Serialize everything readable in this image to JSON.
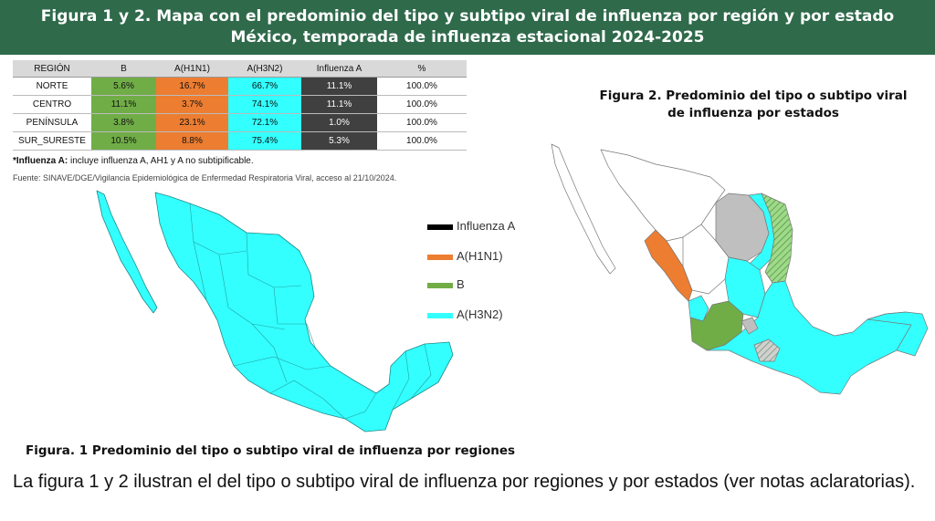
{
  "header": {
    "line1": "Figura 1 y 2. Mapa con el predominio del tipo y subtipo viral de influenza por región y por estado",
    "line2": "México, temporada de influenza estacional 2024-2025"
  },
  "table": {
    "columns": [
      "REGIÓN",
      "B",
      "A(H1N1)",
      "A(H3N2)",
      "Influenza A",
      "%"
    ],
    "rows": [
      [
        "NORTE",
        "5.6%",
        "16.7%",
        "66.7%",
        "11.1%",
        "100.0%"
      ],
      [
        "CENTRO",
        "11.1%",
        "3.7%",
        "74.1%",
        "11.1%",
        "100.0%"
      ],
      [
        "PENÍNSULA",
        "3.8%",
        "23.1%",
        "72.1%",
        "1.0%",
        "100.0%"
      ],
      [
        "SUR_SURESTE",
        "10.5%",
        "8.8%",
        "75.4%",
        "5.3%",
        "100.0%"
      ]
    ]
  },
  "note": {
    "label": "*Influenza A:",
    "text": " incluye influenza A, AH1 y A no subtipificable."
  },
  "source": "Fuente: SINAVE/DGE/Vigilancia Epidemiológica de Enfermedad Respiratoria Viral, acceso al 21/10/2024.",
  "figure2_title": {
    "line1": "Figura 2. Predominio del tipo o subtipo viral",
    "line2": "de influenza por estados"
  },
  "figure1_title": "Figura. 1 Predominio del tipo o subtipo viral de influenza por regiones",
  "legend": [
    {
      "label": "Influenza A",
      "color": "#000000"
    },
    {
      "label": "A(H1N1)",
      "color": "#ed7d31"
    },
    {
      "label": "B",
      "color": "#70ad47"
    },
    {
      "label": "A(H3N2)",
      "color": "#33ffff"
    }
  ],
  "colors": {
    "header_bg": "#2f6a4b",
    "h3n2": "#33ffff",
    "h1n1": "#ed7d31",
    "b": "#70ad47",
    "influenza_a": "#404040",
    "no_data": "#ffffff",
    "gray_state": "#bfbfbf"
  },
  "body_text": "La figura 1 y 2 ilustran el del tipo o subtipo viral de influenza por regiones y por estados (ver notas aclaratorias)."
}
